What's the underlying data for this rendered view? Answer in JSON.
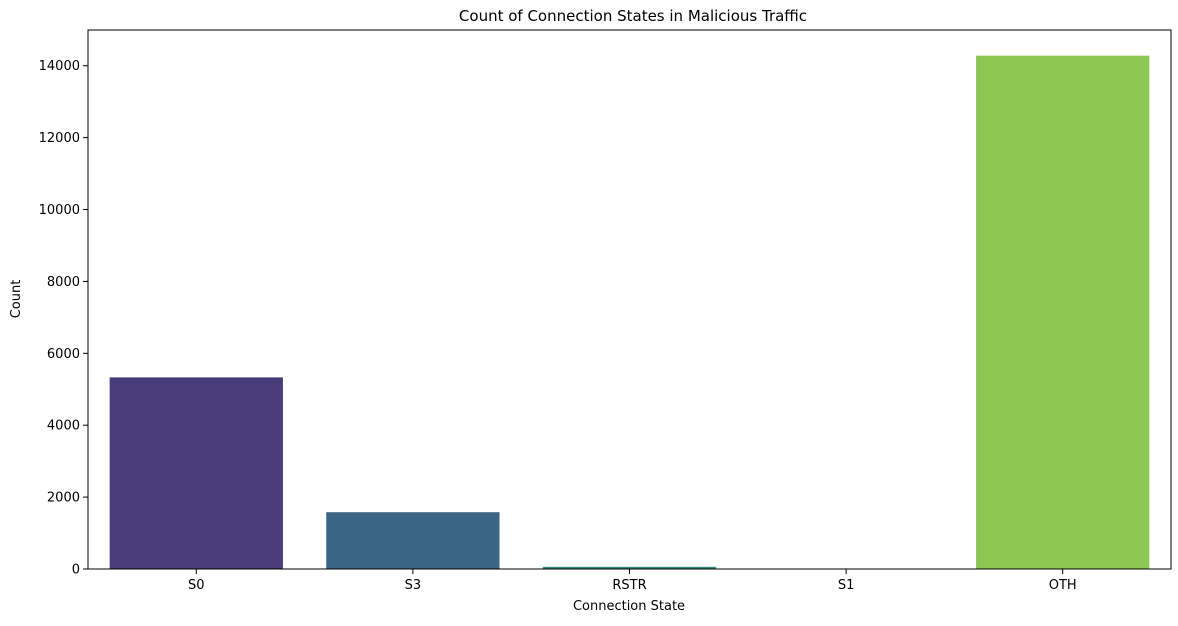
{
  "chart_data": {
    "type": "bar",
    "title": "Count of Connection States in Malicious Traffic",
    "xlabel": "Connection State",
    "ylabel": "Count",
    "categories": [
      "S0",
      "S3",
      "RSTR",
      "S1",
      "OTH"
    ],
    "values": [
      5330,
      1580,
      60,
      5,
      14280
    ],
    "colors": [
      "#483d7a",
      "#3b6584",
      "#2e8a7f",
      "#34a874",
      "#8dc653"
    ],
    "ylim": [
      0,
      14994
    ],
    "yticks": [
      0,
      2000,
      4000,
      6000,
      8000,
      10000,
      12000,
      14000
    ],
    "ytick_labels": [
      "0",
      "2000",
      "4000",
      "6000",
      "8000",
      "10000",
      "12000",
      "14000"
    ],
    "grid": false,
    "legend": "none"
  }
}
